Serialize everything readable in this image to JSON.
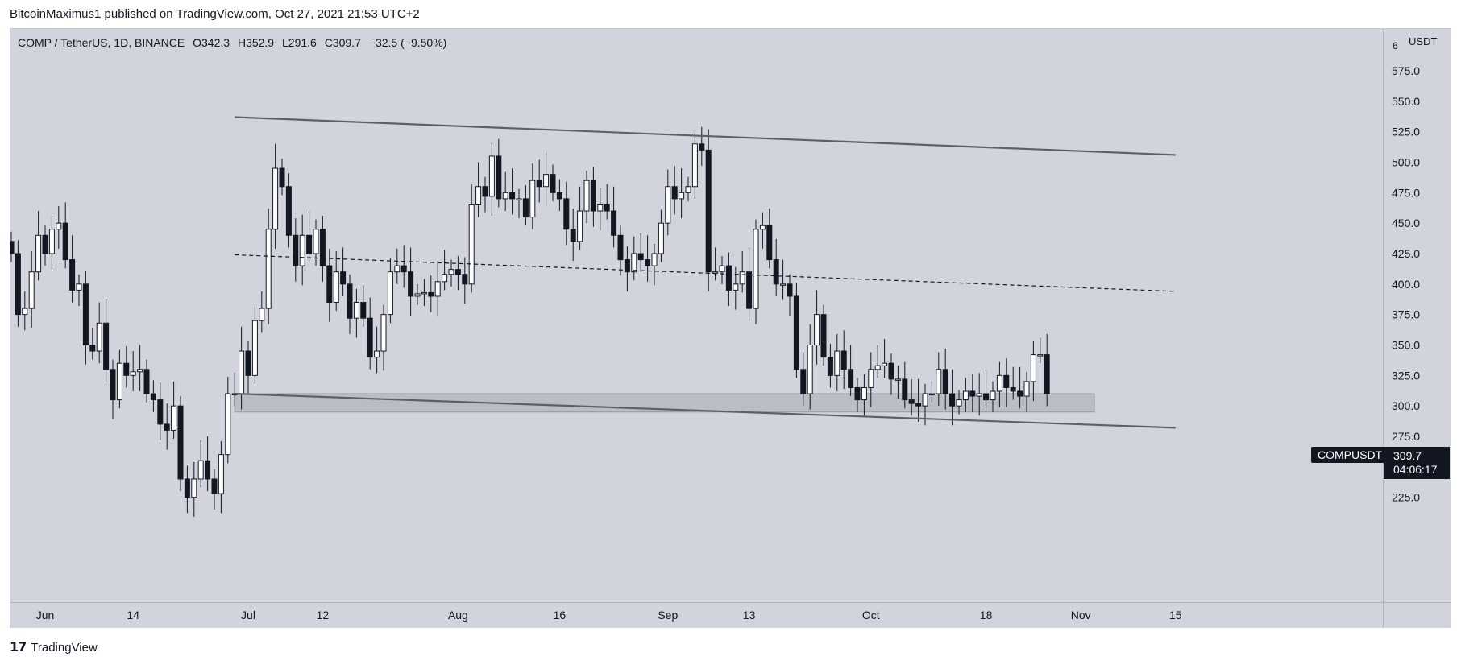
{
  "header": {
    "attribution": "BitcoinMaximus1 published on TradingView.com, Oct 27, 2021 21:53 UTC+2"
  },
  "legend": {
    "symbol": "COMP / TetherUS, 1D, BINANCE",
    "o_label": "O",
    "o_value": "342.3",
    "h_label": "H",
    "h_value": "352.9",
    "l_label": "L",
    "l_value": "291.6",
    "c_label": "C",
    "c_value": "309.7",
    "change": "−32.5 (−9.50%)"
  },
  "price_axis": {
    "unit": "USDT",
    "corner_digit": "6"
  },
  "current": {
    "symbol_tag": "COMPUSDT",
    "price": "309.7",
    "countdown": "04:06:17"
  },
  "footer": {
    "logo_mark": "𝟭𝟳",
    "logo_text": "TradingView"
  },
  "colors": {
    "background": "#d1d4dc",
    "up_body": "#ffffff",
    "down_body": "#131722",
    "wick": "#131722",
    "trendline": "#5d606b",
    "support_box": "#b2b5be"
  },
  "chart_data": {
    "type": "candlestick",
    "symbol": "COMP / TetherUS",
    "interval": "1D",
    "exchange": "BINANCE",
    "ylim": [
      200,
      600
    ],
    "y_ticks": [
      225.0,
      250.0,
      275.0,
      300.0,
      325.0,
      350.0,
      375.0,
      400.0,
      425.0,
      450.0,
      475.0,
      500.0,
      525.0,
      550.0,
      575.0
    ],
    "x_ticks": [
      {
        "label": "Jun",
        "date": "2021-06-01"
      },
      {
        "label": "14",
        "date": "2021-06-14"
      },
      {
        "label": "Jul",
        "date": "2021-07-01"
      },
      {
        "label": "12",
        "date": "2021-07-12"
      },
      {
        "label": "Aug",
        "date": "2021-08-01"
      },
      {
        "label": "16",
        "date": "2021-08-16"
      },
      {
        "label": "Sep",
        "date": "2021-09-01"
      },
      {
        "label": "13",
        "date": "2021-09-13"
      },
      {
        "label": "Oct",
        "date": "2021-10-01"
      },
      {
        "label": "18",
        "date": "2021-10-18"
      },
      {
        "label": "Nov",
        "date": "2021-11-01"
      },
      {
        "label": "15",
        "date": "2021-11-15"
      }
    ],
    "closes": [
      {
        "date": "2021-05-27",
        "close": 425
      },
      {
        "date": "2021-05-28",
        "close": 375
      },
      {
        "date": "2021-05-29",
        "close": 380
      },
      {
        "date": "2021-05-30",
        "close": 410
      },
      {
        "date": "2021-05-31",
        "close": 440
      },
      {
        "date": "2021-06-01",
        "close": 425
      },
      {
        "date": "2021-06-02",
        "close": 445
      },
      {
        "date": "2021-06-03",
        "close": 450
      },
      {
        "date": "2021-06-04",
        "close": 420
      },
      {
        "date": "2021-06-05",
        "close": 395
      },
      {
        "date": "2021-06-06",
        "close": 400
      },
      {
        "date": "2021-06-07",
        "close": 350
      },
      {
        "date": "2021-06-08",
        "close": 345
      },
      {
        "date": "2021-06-09",
        "close": 368
      },
      {
        "date": "2021-06-10",
        "close": 330
      },
      {
        "date": "2021-06-11",
        "close": 305
      },
      {
        "date": "2021-06-12",
        "close": 335
      },
      {
        "date": "2021-06-13",
        "close": 325
      },
      {
        "date": "2021-06-14",
        "close": 328
      },
      {
        "date": "2021-06-15",
        "close": 330
      },
      {
        "date": "2021-06-16",
        "close": 310
      },
      {
        "date": "2021-06-17",
        "close": 305
      },
      {
        "date": "2021-06-18",
        "close": 285
      },
      {
        "date": "2021-06-19",
        "close": 280
      },
      {
        "date": "2021-06-20",
        "close": 300
      },
      {
        "date": "2021-06-21",
        "close": 240
      },
      {
        "date": "2021-06-22",
        "close": 225
      },
      {
        "date": "2021-06-23",
        "close": 240
      },
      {
        "date": "2021-06-24",
        "close": 255
      },
      {
        "date": "2021-06-25",
        "close": 240
      },
      {
        "date": "2021-06-26",
        "close": 228
      },
      {
        "date": "2021-06-27",
        "close": 260
      },
      {
        "date": "2021-06-28",
        "close": 310
      },
      {
        "date": "2021-06-29",
        "close": 310
      },
      {
        "date": "2021-06-30",
        "close": 345
      },
      {
        "date": "2021-07-01",
        "close": 325
      },
      {
        "date": "2021-07-02",
        "close": 370
      },
      {
        "date": "2021-07-03",
        "close": 380
      },
      {
        "date": "2021-07-04",
        "close": 445
      },
      {
        "date": "2021-07-05",
        "close": 495
      },
      {
        "date": "2021-07-06",
        "close": 480
      },
      {
        "date": "2021-07-07",
        "close": 440
      },
      {
        "date": "2021-07-08",
        "close": 415
      },
      {
        "date": "2021-07-09",
        "close": 440
      },
      {
        "date": "2021-07-10",
        "close": 425
      },
      {
        "date": "2021-07-11",
        "close": 445
      },
      {
        "date": "2021-07-12",
        "close": 415
      },
      {
        "date": "2021-07-13",
        "close": 385
      },
      {
        "date": "2021-07-14",
        "close": 410
      },
      {
        "date": "2021-07-15",
        "close": 400
      },
      {
        "date": "2021-07-16",
        "close": 372
      },
      {
        "date": "2021-07-17",
        "close": 385
      },
      {
        "date": "2021-07-18",
        "close": 372
      },
      {
        "date": "2021-07-19",
        "close": 340
      },
      {
        "date": "2021-07-20",
        "close": 345
      },
      {
        "date": "2021-07-21",
        "close": 375
      },
      {
        "date": "2021-07-22",
        "close": 410
      },
      {
        "date": "2021-07-23",
        "close": 415
      },
      {
        "date": "2021-07-24",
        "close": 410
      },
      {
        "date": "2021-07-25",
        "close": 390
      },
      {
        "date": "2021-07-26",
        "close": 392
      },
      {
        "date": "2021-07-27",
        "close": 393
      },
      {
        "date": "2021-07-28",
        "close": 390
      },
      {
        "date": "2021-07-29",
        "close": 402
      },
      {
        "date": "2021-07-30",
        "close": 408
      },
      {
        "date": "2021-07-31",
        "close": 412
      },
      {
        "date": "2021-08-01",
        "close": 408
      },
      {
        "date": "2021-08-02",
        "close": 400
      },
      {
        "date": "2021-08-03",
        "close": 465
      },
      {
        "date": "2021-08-04",
        "close": 480
      },
      {
        "date": "2021-08-05",
        "close": 472
      },
      {
        "date": "2021-08-06",
        "close": 505
      },
      {
        "date": "2021-08-07",
        "close": 470
      },
      {
        "date": "2021-08-08",
        "close": 475
      },
      {
        "date": "2021-08-09",
        "close": 470
      },
      {
        "date": "2021-08-10",
        "close": 470
      },
      {
        "date": "2021-08-11",
        "close": 455
      },
      {
        "date": "2021-08-12",
        "close": 485
      },
      {
        "date": "2021-08-13",
        "close": 480
      },
      {
        "date": "2021-08-14",
        "close": 490
      },
      {
        "date": "2021-08-15",
        "close": 475
      },
      {
        "date": "2021-08-16",
        "close": 470
      },
      {
        "date": "2021-08-17",
        "close": 445
      },
      {
        "date": "2021-08-18",
        "close": 435
      },
      {
        "date": "2021-08-19",
        "close": 460
      },
      {
        "date": "2021-08-20",
        "close": 485
      },
      {
        "date": "2021-08-21",
        "close": 460
      },
      {
        "date": "2021-08-22",
        "close": 465
      },
      {
        "date": "2021-08-23",
        "close": 460
      },
      {
        "date": "2021-08-24",
        "close": 440
      },
      {
        "date": "2021-08-25",
        "close": 420
      },
      {
        "date": "2021-08-26",
        "close": 410
      },
      {
        "date": "2021-08-27",
        "close": 425
      },
      {
        "date": "2021-08-28",
        "close": 420
      },
      {
        "date": "2021-08-29",
        "close": 415
      },
      {
        "date": "2021-08-30",
        "close": 425
      },
      {
        "date": "2021-08-31",
        "close": 450
      },
      {
        "date": "2021-09-01",
        "close": 480
      },
      {
        "date": "2021-09-02",
        "close": 470
      },
      {
        "date": "2021-09-03",
        "close": 475
      },
      {
        "date": "2021-09-04",
        "close": 480
      },
      {
        "date": "2021-09-05",
        "close": 515
      },
      {
        "date": "2021-09-06",
        "close": 510
      },
      {
        "date": "2021-09-07",
        "close": 410
      },
      {
        "date": "2021-09-08",
        "close": 410
      },
      {
        "date": "2021-09-09",
        "close": 415
      },
      {
        "date": "2021-09-10",
        "close": 395
      },
      {
        "date": "2021-09-11",
        "close": 400
      },
      {
        "date": "2021-09-12",
        "close": 410
      },
      {
        "date": "2021-09-13",
        "close": 380
      },
      {
        "date": "2021-09-14",
        "close": 445
      },
      {
        "date": "2021-09-15",
        "close": 448
      },
      {
        "date": "2021-09-16",
        "close": 420
      },
      {
        "date": "2021-09-17",
        "close": 400
      },
      {
        "date": "2021-09-18",
        "close": 400
      },
      {
        "date": "2021-09-19",
        "close": 390
      },
      {
        "date": "2021-09-20",
        "close": 330
      },
      {
        "date": "2021-09-21",
        "close": 310
      },
      {
        "date": "2021-09-22",
        "close": 350
      },
      {
        "date": "2021-09-23",
        "close": 375
      },
      {
        "date": "2021-09-24",
        "close": 340
      },
      {
        "date": "2021-09-25",
        "close": 325
      },
      {
        "date": "2021-09-26",
        "close": 345
      },
      {
        "date": "2021-09-27",
        "close": 330
      },
      {
        "date": "2021-09-28",
        "close": 315
      },
      {
        "date": "2021-09-29",
        "close": 305
      },
      {
        "date": "2021-09-30",
        "close": 315
      },
      {
        "date": "2021-10-01",
        "close": 330
      },
      {
        "date": "2021-10-02",
        "close": 333
      },
      {
        "date": "2021-10-03",
        "close": 335
      },
      {
        "date": "2021-10-04",
        "close": 322
      },
      {
        "date": "2021-10-05",
        "close": 322
      },
      {
        "date": "2021-10-06",
        "close": 305
      },
      {
        "date": "2021-10-07",
        "close": 302
      },
      {
        "date": "2021-10-08",
        "close": 300
      },
      {
        "date": "2021-10-09",
        "close": 310
      },
      {
        "date": "2021-10-10",
        "close": 310
      },
      {
        "date": "2021-10-11",
        "close": 330
      },
      {
        "date": "2021-10-12",
        "close": 310
      },
      {
        "date": "2021-10-13",
        "close": 300
      },
      {
        "date": "2021-10-14",
        "close": 305
      },
      {
        "date": "2021-10-15",
        "close": 312
      },
      {
        "date": "2021-10-16",
        "close": 308
      },
      {
        "date": "2021-10-17",
        "close": 310
      },
      {
        "date": "2021-10-18",
        "close": 305
      },
      {
        "date": "2021-10-19",
        "close": 312
      },
      {
        "date": "2021-10-20",
        "close": 325
      },
      {
        "date": "2021-10-21",
        "close": 315
      },
      {
        "date": "2021-10-22",
        "close": 312
      },
      {
        "date": "2021-10-23",
        "close": 308
      },
      {
        "date": "2021-10-24",
        "close": 320
      },
      {
        "date": "2021-10-25",
        "close": 342
      },
      {
        "date": "2021-10-26",
        "close": 342
      },
      {
        "date": "2021-10-27",
        "close": 309.7
      }
    ],
    "annotations": [
      {
        "type": "trendline",
        "style": "solid",
        "from": {
          "date": "2021-06-29",
          "price": 537
        },
        "to": {
          "date": "2021-11-15",
          "price": 506
        }
      },
      {
        "type": "trendline",
        "style": "dashed",
        "from": {
          "date": "2021-06-29",
          "price": 424
        },
        "to": {
          "date": "2021-11-15",
          "price": 394
        }
      },
      {
        "type": "trendline",
        "style": "solid",
        "from": {
          "date": "2021-06-29",
          "price": 310
        },
        "to": {
          "date": "2021-11-15",
          "price": 282
        }
      },
      {
        "type": "rectangle",
        "from": {
          "date": "2021-06-29",
          "price": 310
        },
        "to": {
          "date": "2021-11-03",
          "price": 295
        }
      }
    ]
  }
}
